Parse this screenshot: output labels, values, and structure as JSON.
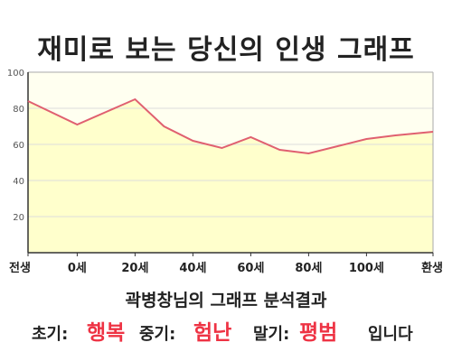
{
  "title": "재미로 보는 당신의 인생 그래프",
  "subtitle": "곽병창님의 그래프 분석결과",
  "result": {
    "early_label": "초기:",
    "early_value": "행복",
    "middle_label": "중기:",
    "middle_value": "험난",
    "late_label": "말기:",
    "late_value": "평범",
    "ending": "입니다"
  },
  "colors": {
    "line": "#e06070",
    "fill": "#ffffcc",
    "plot_background": "#fffff0",
    "accent_text": "#ee3344"
  },
  "chart_data": {
    "type": "area",
    "title": "재미로 보는 당신의 인생 그래프",
    "xlabel": "",
    "ylabel": "",
    "categories": [
      "전생",
      "0세",
      "20세",
      "40세",
      "60세",
      "80세",
      "100세",
      "환생"
    ],
    "x": [
      -17,
      0,
      10,
      20,
      30,
      40,
      50,
      60,
      70,
      80,
      90,
      100,
      110,
      123
    ],
    "values": [
      84,
      71,
      78,
      85,
      70,
      62,
      58,
      64,
      57,
      55,
      59,
      63,
      65,
      67
    ],
    "ylim": [
      0,
      100
    ],
    "yticks": [
      20,
      40,
      60,
      80,
      100
    ],
    "grid": true,
    "legend": "none"
  }
}
